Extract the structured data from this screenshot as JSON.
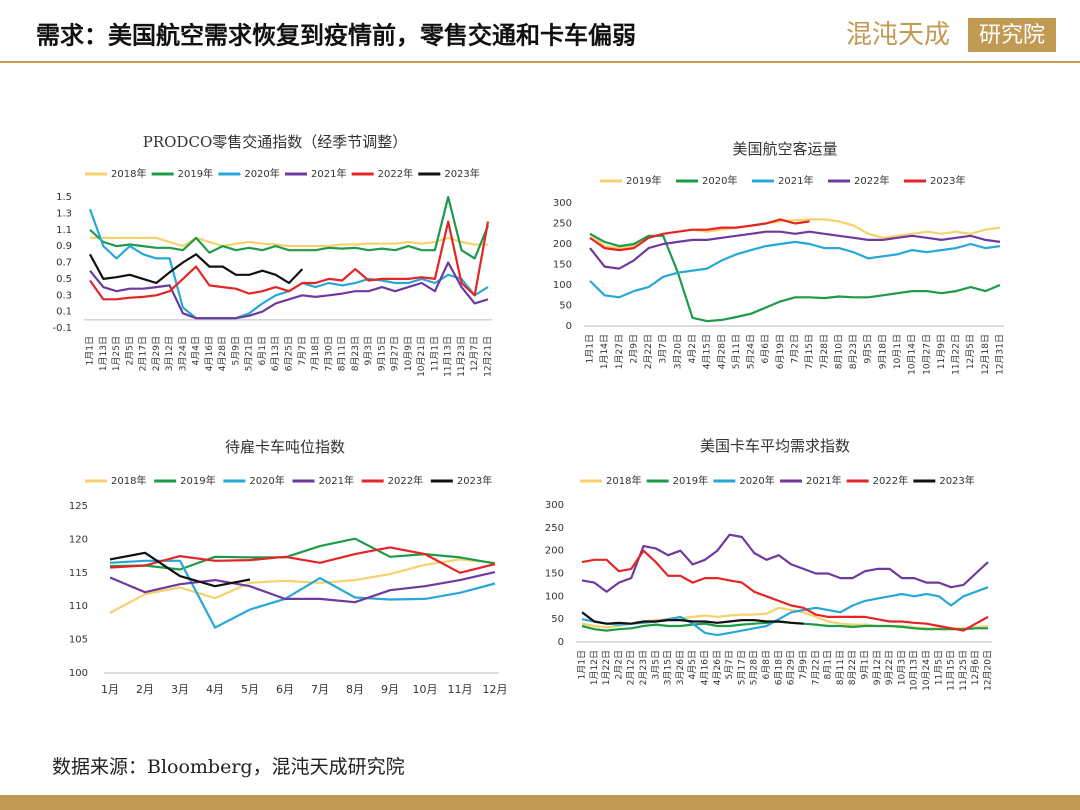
{
  "header": {
    "title": "需求：美国航空需求恢复到疫情前，零售交通和卡车偏弱",
    "logo_left": "混沌天成",
    "logo_right": "研究院"
  },
  "source": "数据来源：Bloomberg，混沌天成研究院",
  "chart_data": [
    {
      "type": "line",
      "title": "PRODCO零售交通指数（经季节调整）",
      "categories": [
        "1月1日",
        "1月13日",
        "1月25日",
        "2月5日",
        "2月17日",
        "2月29日",
        "3月12日",
        "3月24日",
        "4月4日",
        "4月16日",
        "4月28日",
        "5月9日",
        "5月21日",
        "6月1日",
        "6月13日",
        "6月25日",
        "7月7日",
        "7月18日",
        "7月30日",
        "8月11日",
        "8月23日",
        "9月3日",
        "9月15日",
        "9月27日",
        "10月9日",
        "10月21日",
        "11月1日",
        "11月13日",
        "11月23日",
        "12月7日",
        "12月21日"
      ],
      "series": [
        {
          "name": "2018年",
          "color": "#f7d26c",
          "values": [
            1.0,
            1.0,
            1.0,
            1.0,
            1.0,
            1.0,
            0.95,
            0.9,
            1.0,
            0.95,
            0.9,
            0.93,
            0.95,
            0.93,
            0.92,
            0.9,
            0.9,
            0.9,
            0.9,
            0.92,
            0.92,
            0.93,
            0.93,
            0.93,
            0.95,
            0.93,
            0.95,
            1.0,
            0.95,
            0.92,
            0.92
          ]
        },
        {
          "name": "2019年",
          "color": "#1e9b4a",
          "values": [
            1.1,
            0.95,
            0.9,
            0.92,
            0.9,
            0.88,
            0.88,
            0.85,
            1.0,
            0.82,
            0.9,
            0.85,
            0.88,
            0.85,
            0.9,
            0.85,
            0.85,
            0.85,
            0.88,
            0.87,
            0.88,
            0.85,
            0.87,
            0.85,
            0.9,
            0.85,
            0.85,
            1.5,
            0.85,
            0.75,
            1.15
          ]
        },
        {
          "name": "2020年",
          "color": "#27a8d8",
          "values": [
            1.35,
            0.9,
            0.75,
            0.9,
            0.8,
            0.75,
            0.75,
            0.15,
            0.02,
            0.02,
            0.02,
            0.02,
            0.08,
            0.2,
            0.3,
            0.35,
            0.45,
            0.4,
            0.45,
            0.42,
            0.45,
            0.5,
            0.48,
            0.45,
            0.45,
            0.5,
            0.45,
            0.55,
            0.5,
            0.3,
            0.4
          ]
        },
        {
          "name": "2021年",
          "color": "#6f3a9e",
          "values": [
            0.6,
            0.4,
            0.35,
            0.38,
            0.38,
            0.4,
            0.42,
            0.08,
            0.02,
            0.02,
            0.02,
            0.02,
            0.05,
            0.1,
            0.2,
            0.25,
            0.3,
            0.28,
            0.3,
            0.32,
            0.35,
            0.35,
            0.4,
            0.35,
            0.4,
            0.45,
            0.35,
            0.7,
            0.4,
            0.2,
            0.25
          ]
        },
        {
          "name": "2022年",
          "color": "#e42525",
          "values": [
            0.48,
            0.25,
            0.25,
            0.27,
            0.28,
            0.3,
            0.35,
            0.5,
            0.65,
            0.42,
            0.4,
            0.38,
            0.32,
            0.35,
            0.4,
            0.35,
            0.45,
            0.45,
            0.5,
            0.48,
            0.62,
            0.48,
            0.5,
            0.5,
            0.5,
            0.52,
            0.5,
            1.2,
            0.45,
            0.3,
            1.2
          ]
        },
        {
          "name": "2023年",
          "color": "#111111",
          "values": [
            0.8,
            0.5,
            0.52,
            0.55,
            0.5,
            0.45,
            0.58,
            0.7,
            0.8,
            0.65,
            0.65,
            0.55,
            0.55,
            0.6,
            0.55,
            0.45,
            0.62,
            null,
            null,
            null,
            null,
            null,
            null,
            null,
            null,
            null,
            null,
            null,
            null,
            null,
            null
          ]
        }
      ],
      "ylim": [
        -0.1,
        1.5
      ],
      "yticks": [
        -0.1,
        0.1,
        0.3,
        0.5,
        0.7,
        0.9,
        1.1,
        1.3,
        1.5
      ]
    },
    {
      "type": "line",
      "title": "美国航空客运量",
      "categories": [
        "1月1日",
        "1月14日",
        "1月27日",
        "2月9日",
        "2月22日",
        "3月7日",
        "3月20日",
        "4月2日",
        "4月15日",
        "4月28日",
        "5月11日",
        "5月24日",
        "6月6日",
        "6月19日",
        "7月2日",
        "7月15日",
        "7月28日",
        "8月10日",
        "8月23日",
        "9月5日",
        "9月18日",
        "10月1日",
        "10月14日",
        "10月27日",
        "11月9日",
        "11月22日",
        "12月5日",
        "12月18日",
        "12月31日"
      ],
      "series": [
        {
          "name": "2019年",
          "color": "#f7d26c",
          "values": [
            225,
            195,
            190,
            195,
            215,
            225,
            230,
            235,
            230,
            235,
            240,
            245,
            250,
            255,
            258,
            260,
            260,
            255,
            245,
            225,
            215,
            220,
            225,
            230,
            225,
            230,
            225,
            235,
            240
          ]
        },
        {
          "name": "2020年",
          "color": "#1e9b4a",
          "values": [
            225,
            205,
            195,
            200,
            220,
            220,
            130,
            20,
            12,
            15,
            22,
            30,
            45,
            60,
            70,
            70,
            68,
            72,
            70,
            70,
            75,
            80,
            85,
            85,
            80,
            85,
            95,
            85,
            100
          ]
        },
        {
          "name": "2021年",
          "color": "#27a8d8",
          "values": [
            110,
            75,
            70,
            85,
            95,
            120,
            130,
            135,
            140,
            160,
            175,
            185,
            195,
            200,
            205,
            200,
            190,
            190,
            180,
            165,
            170,
            175,
            185,
            180,
            185,
            190,
            200,
            190,
            195
          ]
        },
        {
          "name": "2022年",
          "color": "#6f3a9e",
          "values": [
            190,
            145,
            140,
            160,
            190,
            200,
            205,
            210,
            210,
            215,
            220,
            225,
            230,
            230,
            225,
            230,
            225,
            220,
            215,
            210,
            210,
            215,
            220,
            215,
            210,
            215,
            220,
            210,
            205
          ]
        },
        {
          "name": "2023年",
          "color": "#e42525",
          "values": [
            215,
            190,
            185,
            190,
            215,
            225,
            230,
            235,
            235,
            240,
            240,
            245,
            250,
            260,
            250,
            255,
            null,
            null,
            null,
            null,
            null,
            null,
            null,
            null,
            null,
            null,
            null,
            null,
            null
          ]
        }
      ],
      "ylim": [
        0,
        300
      ],
      "yticks": [
        0,
        50,
        100,
        150,
        200,
        250,
        300
      ]
    },
    {
      "type": "line",
      "title": "待雇卡车吨位指数",
      "categories": [
        "1月",
        "2月",
        "3月",
        "4月",
        "5月",
        "6月",
        "7月",
        "8月",
        "9月",
        "10月",
        "11月",
        "12月"
      ],
      "series": [
        {
          "name": "2018年",
          "color": "#f7d26c",
          "values": [
            109,
            111.8,
            112.8,
            111.2,
            113.5,
            113.8,
            113.5,
            113.9,
            114.8,
            116.2,
            117,
            116.5
          ]
        },
        {
          "name": "2019年",
          "color": "#1e9b4a",
          "values": [
            116,
            116.1,
            115.5,
            117.4,
            117.3,
            117.3,
            119,
            120.1,
            117.4,
            117.8,
            117.3,
            116.4
          ]
        },
        {
          "name": "2020年",
          "color": "#27a8d8",
          "values": [
            116.5,
            116.8,
            116.8,
            106.8,
            109.5,
            111.1,
            114.2,
            111.3,
            111,
            111.1,
            112,
            113.4
          ]
        },
        {
          "name": "2021年",
          "color": "#6f3a9e",
          "values": [
            114.3,
            112.1,
            113.3,
            113.9,
            113,
            111.1,
            111.1,
            110.6,
            112.4,
            113,
            113.9,
            115.1
          ]
        },
        {
          "name": "2022年",
          "color": "#e42525",
          "values": [
            115.8,
            116.1,
            117.5,
            116.8,
            116.9,
            117.4,
            116.5,
            117.8,
            118.8,
            117.8,
            115,
            116.3
          ]
        },
        {
          "name": "2023年",
          "color": "#111111",
          "values": [
            117,
            118,
            114.5,
            113,
            114,
            null,
            null,
            null,
            null,
            null,
            null,
            null
          ]
        }
      ],
      "ylim": [
        100,
        125
      ],
      "yticks": [
        100,
        105,
        110,
        115,
        120,
        125
      ]
    },
    {
      "type": "line",
      "title": "美国卡车平均需求指数",
      "categories": [
        "1月1日",
        "1月12日",
        "1月22日",
        "2月2日",
        "2月12日",
        "2月23日",
        "3月5日",
        "3月15日",
        "3月26日",
        "4月5日",
        "4月16日",
        "4月26日",
        "5月7日",
        "5月17日",
        "5月28日",
        "6月8日",
        "6月18日",
        "6月29日",
        "7月9日",
        "7月22日",
        "8月1日",
        "8月11日",
        "8月22日",
        "9月1日",
        "9月12日",
        "9月22日",
        "10月3日",
        "10月13日",
        "10月24日",
        "11月5日",
        "11月15日",
        "11月25日",
        "12月6日",
        "12月20日"
      ],
      "series": [
        {
          "name": "2018年",
          "color": "#f7d26c",
          "values": [
            40,
            35,
            32,
            35,
            40,
            45,
            48,
            50,
            52,
            55,
            58,
            55,
            58,
            60,
            60,
            62,
            75,
            70,
            65,
            55,
            45,
            40,
            38,
            38,
            35,
            35,
            35,
            32,
            30,
            30,
            30,
            30,
            32,
            35
          ]
        },
        {
          "name": "2019年",
          "color": "#1e9b4a",
          "values": [
            35,
            28,
            25,
            28,
            30,
            35,
            38,
            35,
            35,
            38,
            40,
            35,
            35,
            38,
            40,
            42,
            45,
            42,
            40,
            38,
            35,
            35,
            33,
            35,
            35,
            35,
            33,
            30,
            28,
            28,
            28,
            28,
            30,
            30
          ]
        },
        {
          "name": "2020年",
          "color": "#27a8d8",
          "values": [
            50,
            45,
            40,
            38,
            40,
            42,
            45,
            50,
            55,
            40,
            20,
            15,
            20,
            25,
            30,
            35,
            50,
            65,
            70,
            75,
            70,
            65,
            80,
            90,
            95,
            100,
            105,
            100,
            105,
            100,
            80,
            100,
            110,
            120
          ]
        },
        {
          "name": "2021年",
          "color": "#6f3a9e",
          "values": [
            135,
            130,
            110,
            130,
            140,
            210,
            205,
            190,
            200,
            170,
            180,
            200,
            235,
            230,
            195,
            180,
            190,
            170,
            160,
            150,
            150,
            140,
            140,
            155,
            160,
            160,
            140,
            140,
            130,
            130,
            120,
            125,
            150,
            175
          ]
        },
        {
          "name": "2022年",
          "color": "#e42525",
          "values": [
            175,
            180,
            180,
            155,
            160,
            200,
            175,
            145,
            145,
            130,
            140,
            140,
            135,
            130,
            110,
            100,
            90,
            80,
            75,
            60,
            55,
            55,
            55,
            55,
            50,
            45,
            45,
            42,
            40,
            35,
            30,
            25,
            40,
            55
          ]
        },
        {
          "name": "2023年",
          "color": "#111111",
          "values": [
            65,
            45,
            40,
            42,
            40,
            45,
            45,
            48,
            48,
            45,
            45,
            42,
            45,
            48,
            48,
            45,
            45,
            42,
            40,
            null,
            null,
            null,
            null,
            null,
            null,
            null,
            null,
            null,
            null,
            null,
            null,
            null,
            null,
            null
          ]
        }
      ],
      "ylim": [
        0,
        300
      ],
      "yticks": [
        0,
        50,
        100,
        150,
        200,
        250,
        300
      ]
    }
  ]
}
